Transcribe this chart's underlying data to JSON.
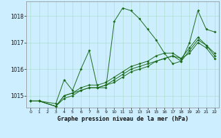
{
  "title": "Graphe pression niveau de la mer (hPa)",
  "background_color": "#cceeff",
  "grid_color": "#b0ddd0",
  "line_color": "#1a6b1a",
  "x_ticks": [
    0,
    1,
    2,
    3,
    4,
    5,
    6,
    7,
    8,
    9,
    10,
    11,
    12,
    13,
    14,
    15,
    16,
    17,
    18,
    19,
    20,
    21,
    22
  ],
  "y_ticks": [
    1015,
    1016,
    1017,
    1018
  ],
  "ylim": [
    1014.55,
    1018.55
  ],
  "xlim": [
    -0.5,
    22.5
  ],
  "series": [
    {
      "x": [
        0,
        1,
        3,
        4,
        5,
        6,
        7,
        8,
        9,
        10,
        11,
        12,
        13,
        14,
        15,
        16,
        17,
        18,
        19,
        20,
        21,
        22
      ],
      "y": [
        1014.8,
        1014.8,
        1014.7,
        1015.6,
        1015.2,
        1016.0,
        1016.7,
        1015.3,
        1015.3,
        1017.8,
        1018.3,
        1018.2,
        1017.9,
        1017.5,
        1017.1,
        1016.6,
        1016.2,
        1016.3,
        1017.0,
        1018.2,
        1017.5,
        1017.4
      ]
    },
    {
      "x": [
        0,
        1,
        3,
        4,
        5,
        6,
        7,
        8,
        9,
        10,
        11,
        12,
        13,
        14,
        15,
        16,
        17,
        18,
        19,
        20,
        21,
        22
      ],
      "y": [
        1014.8,
        1014.8,
        1014.6,
        1014.9,
        1015.0,
        1015.2,
        1015.3,
        1015.3,
        1015.4,
        1015.6,
        1015.8,
        1016.0,
        1016.1,
        1016.2,
        1016.3,
        1016.4,
        1016.5,
        1016.4,
        1016.6,
        1017.0,
        1016.8,
        1016.4
      ]
    },
    {
      "x": [
        0,
        1,
        3,
        4,
        5,
        6,
        7,
        8,
        9,
        10,
        11,
        12,
        13,
        14,
        15,
        16,
        17,
        18,
        19,
        20,
        21,
        22
      ],
      "y": [
        1014.8,
        1014.8,
        1014.6,
        1015.0,
        1015.1,
        1015.2,
        1015.3,
        1015.3,
        1015.4,
        1015.5,
        1015.7,
        1015.9,
        1016.0,
        1016.1,
        1016.3,
        1016.4,
        1016.5,
        1016.3,
        1016.7,
        1017.1,
        1016.9,
        1016.5
      ]
    },
    {
      "x": [
        0,
        1,
        3,
        4,
        5,
        6,
        7,
        8,
        9,
        10,
        11,
        12,
        13,
        14,
        15,
        16,
        17,
        18,
        19,
        20,
        21,
        22
      ],
      "y": [
        1014.8,
        1014.8,
        1014.6,
        1015.0,
        1015.1,
        1015.3,
        1015.4,
        1015.4,
        1015.5,
        1015.7,
        1015.9,
        1016.1,
        1016.2,
        1016.3,
        1016.5,
        1016.6,
        1016.6,
        1016.4,
        1016.8,
        1017.2,
        1016.9,
        1016.6
      ]
    }
  ]
}
